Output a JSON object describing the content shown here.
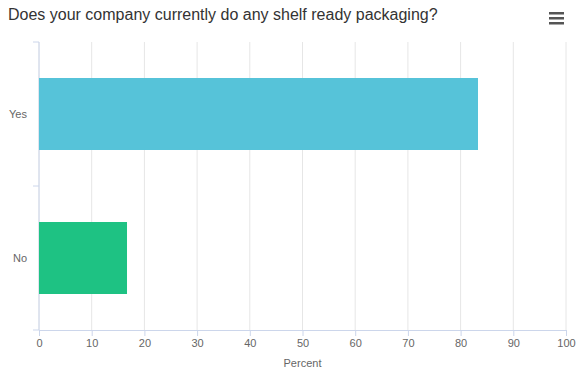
{
  "chart_data": {
    "type": "bar",
    "title": "Does your company currently do any shelf ready packaging?",
    "orientation": "horizontal",
    "categories": [
      "Yes",
      "No"
    ],
    "values": [
      83.3,
      16.7
    ],
    "colors": [
      "#56c3d9",
      "#1ec283"
    ],
    "xlabel": "Percent",
    "xlim": [
      0,
      100
    ],
    "xticks": [
      0,
      10,
      20,
      30,
      40,
      50,
      60,
      70,
      80,
      90,
      100
    ],
    "grid": true
  }
}
